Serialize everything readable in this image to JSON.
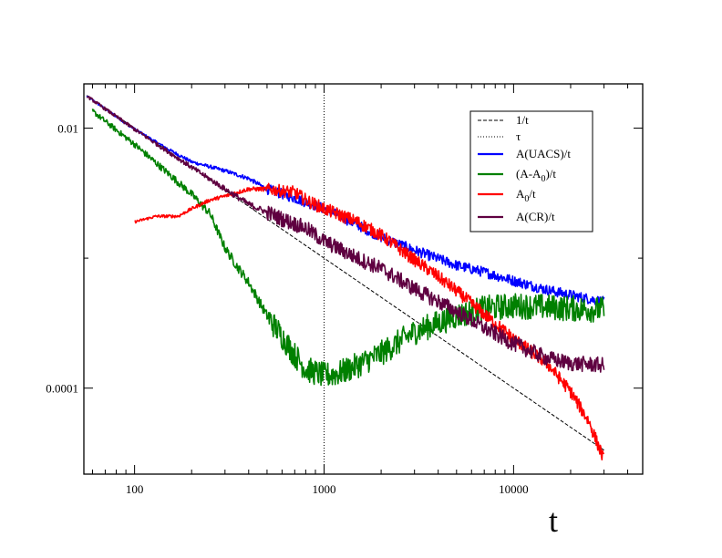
{
  "chart_data": {
    "type": "line",
    "title": "",
    "xlabel": "t",
    "ylabel": "",
    "xscale": "log",
    "yscale": "log",
    "xlim": [
      54,
      48000
    ],
    "ylim": [
      2.18e-05,
      0.0219
    ],
    "grid": false,
    "legend_position": "top-right",
    "x_ticks": [
      {
        "value": 100,
        "label": "100"
      },
      {
        "value": 1000,
        "label": "1000"
      },
      {
        "value": 10000,
        "label": "10000"
      }
    ],
    "y_ticks": [
      {
        "value": 0.0001,
        "label": "0.0001"
      },
      {
        "value": 0.01,
        "label": "0.01"
      }
    ],
    "vline": {
      "name": "τ",
      "x": 1000,
      "style": "dotted",
      "color": "#000000"
    },
    "reference_line": {
      "name": "1/t",
      "x": [
        56,
        30000
      ],
      "formula": "1/t",
      "style": "dashed",
      "color": "#000000"
    },
    "series": [
      {
        "name": "A(UACS)/t",
        "color": "#0000ff",
        "noise": 0.04,
        "x": [
          56,
          100,
          150,
          200,
          300,
          400,
          500,
          700,
          1000,
          1500,
          2000,
          3000,
          5000,
          7000,
          10000,
          15000,
          20000,
          30000
        ],
        "y": [
          0.0176,
          0.0098,
          0.0069,
          0.0055,
          0.0047,
          0.0041,
          0.0034,
          0.0029,
          0.0024,
          0.0018,
          0.00145,
          0.00115,
          0.00088,
          0.00078,
          0.00067,
          0.00057,
          0.00052,
          0.00046
        ]
      },
      {
        "name": "(A-A_0)/t",
        "color": "#008000",
        "noise": 0.1,
        "x": [
          60,
          100,
          150,
          200,
          250,
          300,
          350,
          400,
          500,
          600,
          700,
          800,
          1000,
          1200,
          1500,
          2000,
          3000,
          5000,
          7000,
          10000,
          15000,
          20000,
          30000
        ],
        "y": [
          0.0135,
          0.0075,
          0.0045,
          0.0031,
          0.0022,
          0.0012,
          0.00085,
          0.00065,
          0.00036,
          0.00025,
          0.00018,
          0.00014,
          0.000125,
          0.00013,
          0.00015,
          0.000185,
          0.00027,
          0.00036,
          0.00041,
          0.00043,
          0.00042,
          0.00041,
          0.0004
        ]
      },
      {
        "name": "A_0/t",
        "color": "#ff0000",
        "noise": 0.05,
        "x": [
          100,
          130,
          170,
          200,
          250,
          300,
          400,
          500,
          700,
          800,
          1000,
          1500,
          2000,
          2500,
          3000,
          4000,
          5000,
          7000,
          10000,
          15000,
          20000,
          25000,
          30000
        ],
        "y": [
          0.0019,
          0.0021,
          0.0021,
          0.0024,
          0.0028,
          0.003,
          0.0034,
          0.0034,
          0.0032,
          0.0028,
          0.0024,
          0.0019,
          0.0015,
          0.00118,
          0.00097,
          0.00072,
          0.00056,
          0.00037,
          0.00024,
          0.000155,
          9.4e-05,
          5.5e-05,
          2.8e-05
        ]
      },
      {
        "name": "A(CR)/t",
        "color": "#5f0040",
        "noise": 0.06,
        "x": [
          56,
          100,
          150,
          200,
          300,
          400,
          600,
          800,
          1000,
          1500,
          2000,
          3000,
          5000,
          7000,
          10000,
          15000,
          20000,
          30000
        ],
        "y": [
          0.0176,
          0.0098,
          0.0066,
          0.005,
          0.0034,
          0.0026,
          0.002,
          0.0017,
          0.00135,
          0.001,
          0.00083,
          0.00058,
          0.00039,
          0.00029,
          0.00022,
          0.00017,
          0.000155,
          0.00015
        ]
      }
    ]
  }
}
